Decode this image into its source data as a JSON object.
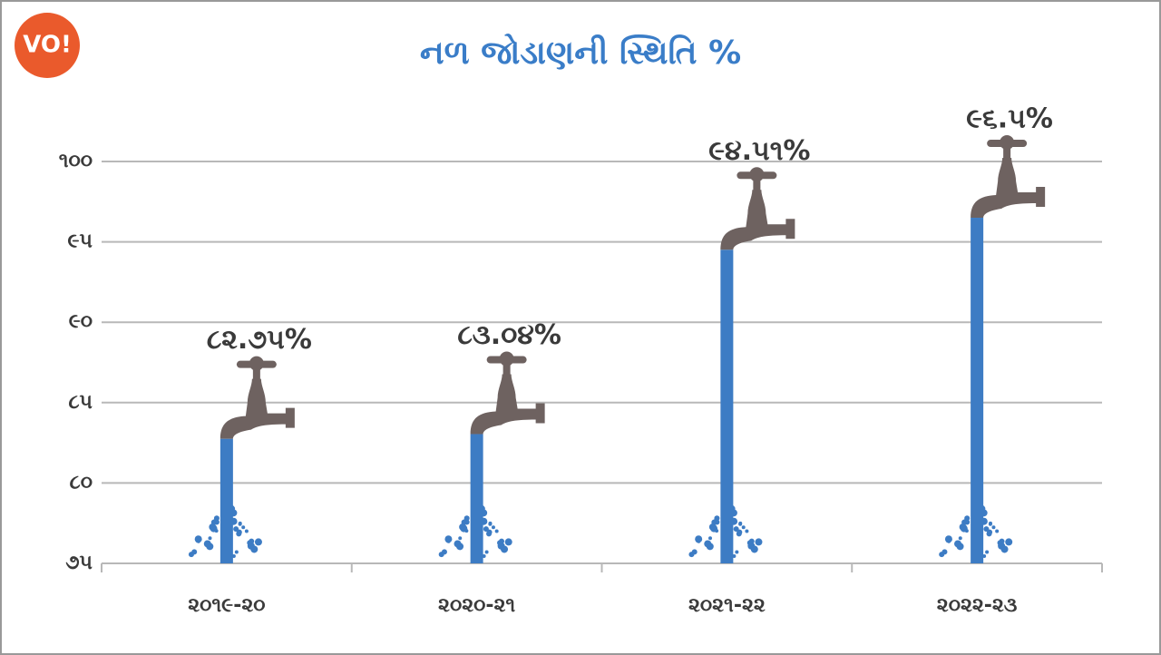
{
  "logo": "VO!",
  "chart_data": {
    "type": "bar",
    "title": "નળ જોડાણની સ્થિતિ %",
    "categories": [
      "૨૦૧૯-૨૦",
      "૨૦૨૦-૨૧",
      "૨૦૨૧-૨૨",
      "૨૦૨૨-૨૩"
    ],
    "values": [
      82.75,
      83.04,
      94.51,
      96.5
    ],
    "value_labels": [
      "૮૨.૭૫%",
      "૮૩.૦૪%",
      "૯૪.૫૧%",
      "૯૬.૫%"
    ],
    "color": "#3d7cc4",
    "ylim": [
      75,
      100
    ],
    "yticks": [
      {
        "value": 75,
        "label": "૭૫"
      },
      {
        "value": 80,
        "label": "૮૦"
      },
      {
        "value": 85,
        "label": "૮૫"
      },
      {
        "value": 90,
        "label": "૯૦"
      },
      {
        "value": 95,
        "label": "૯૫"
      },
      {
        "value": 100,
        "label": "૧૦૦"
      }
    ],
    "grid": true
  }
}
